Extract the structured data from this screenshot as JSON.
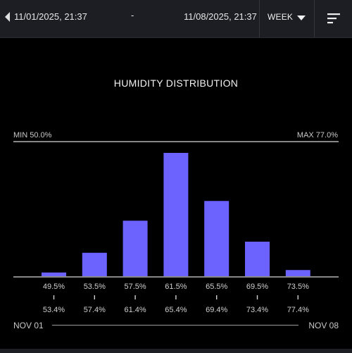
{
  "header": {
    "start_date": "11/01/2025, 21:37",
    "separator": "-",
    "end_date": "11/08/2025, 21:37",
    "period": "WEEK",
    "icons": [
      "chevron-left-icon",
      "caret-down-icon",
      "sort-icon"
    ]
  },
  "colors": {
    "bar": "#6c63ff",
    "background": "#000000",
    "header": "#1c1e24"
  },
  "chart_data": {
    "type": "bar",
    "title": "HUMIDITY DISTRIBUTION",
    "min_label": "MIN 50.0%",
    "max_label": "MAX 77.0%",
    "bins": [
      {
        "low": "49.5%",
        "high": "53.4%",
        "value": 3
      },
      {
        "low": "53.5%",
        "high": "57.4%",
        "value": 19
      },
      {
        "low": "57.5%",
        "high": "61.4%",
        "value": 45
      },
      {
        "low": "61.5%",
        "high": "65.4%",
        "value": 100
      },
      {
        "low": "65.5%",
        "high": "69.4%",
        "value": 61
      },
      {
        "low": "69.5%",
        "high": "73.4%",
        "value": 28
      },
      {
        "low": "73.5%",
        "high": "77.4%",
        "value": 5
      }
    ],
    "ylim": [
      0,
      100
    ]
  },
  "footer": {
    "range_start": "NOV 01",
    "range_end": "NOV 08"
  }
}
